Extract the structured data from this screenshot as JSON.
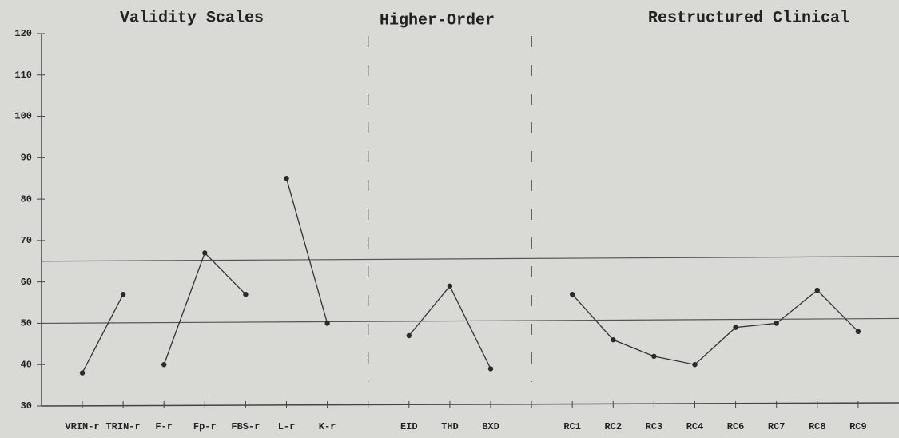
{
  "chart_data": {
    "type": "line",
    "sections": [
      "Validity Scales",
      "Higher-Order",
      "Restructured Clinical"
    ],
    "categories": [
      "VRIN-r",
      "TRIN-r",
      "F-r",
      "Fp-r",
      "FBS-r",
      "L-r",
      "K-r",
      null,
      "EID",
      "THD",
      "BXD",
      null,
      "RC1",
      "RC2",
      "RC3",
      "RC4",
      "RC6",
      "RC7",
      "RC8",
      "RC9"
    ],
    "series": [
      {
        "color": "#333333",
        "values": [
          38,
          57,
          null,
          null,
          null,
          85,
          50,
          null,
          47,
          59,
          39,
          null,
          57,
          46,
          42,
          40,
          49,
          50,
          58,
          48
        ]
      },
      {
        "color": "#333333",
        "values": [
          null,
          null,
          40,
          67,
          57,
          null,
          null,
          null,
          null,
          null,
          null,
          null,
          null,
          null,
          null,
          null,
          null,
          null,
          null,
          null
        ]
      }
    ],
    "reference_lines": [
      65,
      50
    ],
    "ylim": [
      30,
      120
    ],
    "yticks": [
      30,
      40,
      50,
      60,
      70,
      80,
      90,
      100,
      110,
      120
    ]
  }
}
